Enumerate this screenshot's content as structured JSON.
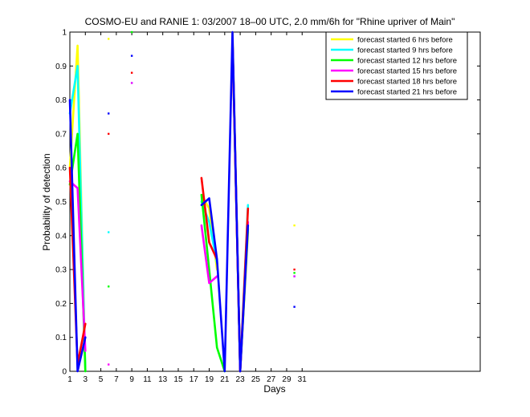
{
  "chart_data": {
    "type": "line",
    "title": "COSMO-EU and RANIE 1: 03/2007 18–00 UTC, 2.0 mm/6h for \"Rhine upriver of Main\"",
    "xlabel": "Days",
    "ylabel": "Probability of detection",
    "xlim": [
      1,
      54
    ],
    "ylim": [
      0,
      1
    ],
    "xticks": [
      1,
      3,
      5,
      7,
      9,
      11,
      13,
      15,
      17,
      19,
      21,
      23,
      25,
      27,
      29,
      31
    ],
    "yticks": [
      0,
      0.1,
      0.2,
      0.3,
      0.4,
      0.5,
      0.6,
      0.7,
      0.8,
      0.9,
      1
    ],
    "ytick_labels": [
      "0",
      "0.1",
      "0.2",
      "0.3",
      "0.4",
      "0.5",
      "0.6",
      "0.7",
      "0.8",
      "0.9",
      "1"
    ],
    "legend_position": "top-right",
    "grid": false,
    "series": [
      {
        "name": "forecast started 6 hrs before",
        "color": "#ffff00",
        "segments": [
          [
            [
              1,
              0.6
            ],
            [
              2,
              0.96
            ],
            [
              3,
              0.0
            ]
          ],
          [
            [
              18,
              0.52
            ],
            [
              19,
              0.48
            ],
            [
              20,
              0.3
            ]
          ],
          [
            [
              22,
              1.0
            ],
            [
              23,
              0.0
            ],
            [
              24,
              0.41
            ]
          ]
        ],
        "points": [
          [
            6,
            0.98
          ],
          [
            30,
            0.43
          ]
        ]
      },
      {
        "name": "forecast started 9 hrs before",
        "color": "#00ffff",
        "segments": [
          [
            [
              1,
              0.76
            ],
            [
              2,
              0.9
            ],
            [
              3,
              0.0
            ]
          ],
          [
            [
              18,
              0.5
            ],
            [
              19,
              0.44
            ],
            [
              20,
              0.32
            ]
          ],
          [
            [
              22,
              0.98
            ],
            [
              23,
              0.0
            ],
            [
              24,
              0.49
            ]
          ]
        ],
        "points": [
          [
            6,
            0.41
          ],
          [
            9,
            0.85
          ],
          [
            30,
            0.28
          ]
        ]
      },
      {
        "name": "forecast started 12 hrs before",
        "color": "#00ff00",
        "segments": [
          [
            [
              1,
              0.55
            ],
            [
              2,
              0.7
            ],
            [
              3,
              0.0
            ]
          ],
          [
            [
              18,
              0.52
            ],
            [
              19,
              0.3
            ],
            [
              20,
              0.07
            ],
            [
              21,
              0.0
            ]
          ],
          [
            [
              22,
              0.98
            ],
            [
              23,
              0.0
            ],
            [
              24,
              0.42
            ]
          ]
        ],
        "points": [
          [
            6,
            0.25
          ],
          [
            9,
            1.0
          ],
          [
            30,
            0.29
          ]
        ]
      },
      {
        "name": "forecast started 15 hrs before",
        "color": "#ff00ff",
        "segments": [
          [
            [
              1,
              0.56
            ],
            [
              2,
              0.54
            ],
            [
              3,
              0.06
            ]
          ],
          [
            [
              18,
              0.43
            ],
            [
              19,
              0.26
            ],
            [
              20,
              0.28
            ]
          ],
          [
            [
              22,
              0.98
            ],
            [
              23,
              0.0
            ],
            [
              24,
              0.44
            ]
          ]
        ],
        "points": [
          [
            6,
            0.02
          ],
          [
            9,
            0.85
          ],
          [
            30,
            0.28
          ]
        ]
      },
      {
        "name": "forecast started 18 hrs before",
        "color": "#ff0000",
        "segments": [
          [
            [
              1,
              0.6
            ],
            [
              2,
              0.02
            ],
            [
              3,
              0.14
            ]
          ],
          [
            [
              18,
              0.57
            ],
            [
              19,
              0.38
            ],
            [
              20,
              0.33
            ]
          ],
          [
            [
              22,
              0.98
            ],
            [
              23,
              0.0
            ],
            [
              24,
              0.48
            ]
          ]
        ],
        "points": [
          [
            6,
            0.7
          ],
          [
            9,
            0.88
          ],
          [
            30,
            0.3
          ]
        ]
      },
      {
        "name": "forecast started 21 hrs before",
        "color": "#0000ff",
        "segments": [
          [
            [
              1,
              0.8
            ],
            [
              2,
              0.0
            ],
            [
              3,
              0.1
            ]
          ],
          [
            [
              18,
              0.49
            ],
            [
              19,
              0.51
            ],
            [
              20,
              0.33
            ],
            [
              21,
              0.0
            ],
            [
              22,
              1.0
            ],
            [
              23,
              0.0
            ],
            [
              24,
              0.43
            ]
          ]
        ],
        "points": [
          [
            6,
            0.76
          ],
          [
            9,
            0.93
          ],
          [
            30,
            0.19
          ]
        ]
      }
    ]
  }
}
